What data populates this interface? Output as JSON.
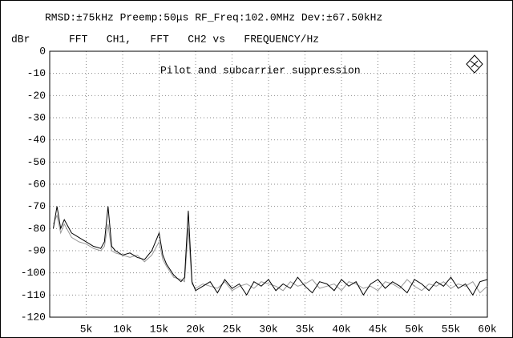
{
  "chart_data": {
    "type": "line",
    "title": "RMSD:±75kHz Preemp:50μs RF_Freq:102.0MHz Dev:±67.50kHz",
    "subtitle": "FFT   CH1,   FFT   CH2 vs   FREQUENCY/Hz",
    "y_label": "dBr",
    "annotation": "Pilot and subcarrier suppression",
    "x": [
      500,
      1000,
      1500,
      2000,
      3000,
      4000,
      5000,
      6000,
      7000,
      7500,
      8000,
      8500,
      9000,
      10000,
      11000,
      12000,
      13000,
      14000,
      15000,
      15500,
      16000,
      17000,
      18000,
      18500,
      19000,
      19500,
      20000,
      21000,
      22000,
      23000,
      24000,
      25000,
      26000,
      27000,
      28000,
      29000,
      30000,
      31000,
      32000,
      33000,
      34000,
      35000,
      36000,
      37000,
      38000,
      39000,
      40000,
      41000,
      42000,
      43000,
      44000,
      45000,
      46000,
      47000,
      48000,
      49000,
      50000,
      51000,
      52000,
      53000,
      54000,
      55000,
      56000,
      57000,
      58000,
      59000,
      60000
    ],
    "series": [
      {
        "name": "CH1",
        "color": "#000000",
        "values": [
          -80,
          -70,
          -80,
          -76,
          -82,
          -84,
          -86,
          -88,
          -89,
          -86,
          -70,
          -88,
          -90,
          -92,
          -91,
          -93,
          -94,
          -90,
          -82,
          -92,
          -96,
          -101,
          -104,
          -102,
          -72,
          -104,
          -108,
          -106,
          -104,
          -109,
          -103,
          -107,
          -105,
          -110,
          -104,
          -106,
          -103,
          -108,
          -105,
          -107,
          -102,
          -106,
          -109,
          -104,
          -105,
          -108,
          -103,
          -106,
          -104,
          -110,
          -105,
          -103,
          -107,
          -104,
          -106,
          -109,
          -103,
          -105,
          -108,
          -104,
          -106,
          -102,
          -107,
          -105,
          -110,
          -104,
          -103
        ]
      },
      {
        "name": "CH2",
        "color": "#999999",
        "values": [
          -78,
          -74,
          -82,
          -78,
          -84,
          -86,
          -87,
          -89,
          -90,
          -88,
          -78,
          -90,
          -91,
          -92,
          -93,
          -92,
          -95,
          -92,
          -86,
          -94,
          -97,
          -102,
          -103,
          -104,
          -80,
          -105,
          -107,
          -105,
          -106,
          -107,
          -104,
          -108,
          -106,
          -105,
          -107,
          -104,
          -105,
          -106,
          -108,
          -104,
          -106,
          -105,
          -103,
          -107,
          -106,
          -105,
          -108,
          -104,
          -105,
          -107,
          -106,
          -108,
          -104,
          -105,
          -107,
          -103,
          -106,
          -108,
          -105,
          -106,
          -104,
          -107,
          -105,
          -106,
          -104,
          -109,
          -106
        ]
      }
    ],
    "xlim": [
      0,
      60000
    ],
    "xticks": [
      {
        "value": 5000,
        "label": "5k"
      },
      {
        "value": 10000,
        "label": "10k"
      },
      {
        "value": 15000,
        "label": "15k"
      },
      {
        "value": 20000,
        "label": "20k"
      },
      {
        "value": 25000,
        "label": "25k"
      },
      {
        "value": 30000,
        "label": "30k"
      },
      {
        "value": 35000,
        "label": "35k"
      },
      {
        "value": 40000,
        "label": "40k"
      },
      {
        "value": 45000,
        "label": "45k"
      },
      {
        "value": 50000,
        "label": "50k"
      },
      {
        "value": 55000,
        "label": "55k"
      },
      {
        "value": 60000,
        "label": "60k"
      }
    ],
    "ylim": [
      -120,
      0
    ],
    "yticks": [
      0,
      -10,
      -20,
      -30,
      -40,
      -50,
      -60,
      -70,
      -80,
      -90,
      -100,
      -110,
      -120
    ],
    "grid": true
  }
}
